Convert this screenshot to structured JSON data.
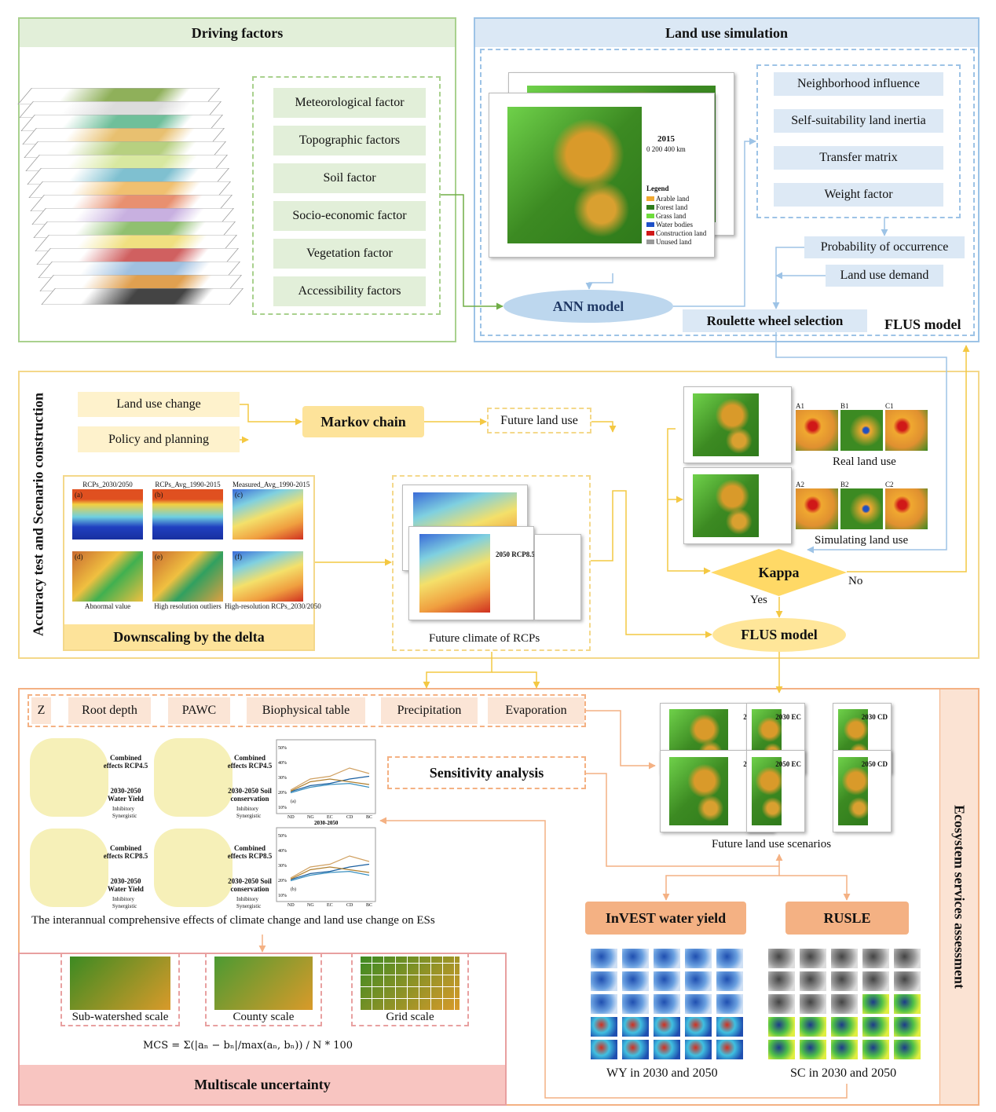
{
  "driving": {
    "title": "Driving factors",
    "factors": [
      "Meteorological factor",
      "Topographic factors",
      "Soil factor",
      "Socio-economic factor",
      "Vegetation factor",
      "Accessibility factors"
    ]
  },
  "simulation": {
    "title": "Land use simulation",
    "map_year": "2015",
    "map_legend_title": "Legend",
    "map_legend": [
      "Arable land",
      "Forest land",
      "Grass land",
      "Water bodies",
      "Construction land",
      "Unused land"
    ],
    "map_scale": "0   200   400 km",
    "influences": [
      "Neighborhood influence",
      "Self-suitability land inertia",
      "Transfer matrix",
      "Weight factor"
    ],
    "probability": "Probability of occurrence",
    "demand": "Land use demand",
    "ann": "ANN model",
    "roulette": "Roulette wheel selection",
    "flus": "FLUS model"
  },
  "accuracy": {
    "title": "Accuracy test and Scenario construction",
    "land_use_change": "Land use change",
    "policy": "Policy and planning",
    "markov": "Markov chain",
    "future_land_use": "Future land use",
    "downscaling_panels": [
      "RCPs_2030/2050",
      "RCPs_Avg_1990-2015",
      "Measured_Avg_1990-2015"
    ],
    "downscaling_captions": [
      "Abnormal value",
      "High resolution outliers",
      "High-resolution RCPs_2030/2050"
    ],
    "downscaling_letters": [
      "(a)",
      "(b)",
      "(c)",
      "(d)",
      "(e)",
      "(f)"
    ],
    "downscaling_title": "Downscaling by the delta",
    "future_climate": "Future climate of RCPs",
    "climate_map_title": "2050 RCP8.5",
    "real": "Real land use",
    "simulating": "Simulating land use",
    "zoom_labels_real": [
      "A1",
      "B1",
      "C1"
    ],
    "zoom_labels_sim": [
      "A2",
      "B2",
      "C2"
    ],
    "kappa": "Kappa",
    "yes": "Yes",
    "no": "No",
    "flus": "FLUS model"
  },
  "ecosystem": {
    "title": "Ecosystem services assessment",
    "inputs": [
      "Z",
      "Root depth",
      "PAWC",
      "Biophysical table",
      "Precipitation",
      "Evaporation"
    ],
    "sensitivity": "Sensitivity analysis",
    "effect_maps": [
      {
        "title": "Combined effects RCP4.5",
        "sub": "2030-2050 Water Yield"
      },
      {
        "title": "Combined effects RCP4.5",
        "sub": "2030-2050 Soil conservation"
      },
      {
        "title": "Combined effects RCP8.5",
        "sub": "2030-2050 Water Yield"
      },
      {
        "title": "Combined effects RCP8.5",
        "sub": "2030-2050 Soil conservation"
      }
    ],
    "effect_legend": [
      "Inhibitory",
      "Synergistic"
    ],
    "chart_mid_label": "2030-2050",
    "chart_labels": [
      "(a)",
      "(b)"
    ],
    "chart_categories": [
      "ND",
      "NG",
      "EC",
      "CD",
      "BC"
    ],
    "chart_y_ticks": [
      "10%",
      "20%",
      "30%",
      "40%",
      "50%"
    ],
    "caption": "The interannual comprehensive effects of climate change and land use change on ESs",
    "scenarios_caption": "Future land use scenarios",
    "scenario_titles": [
      "2030 NG",
      "2030 EC",
      "2030 CD",
      "2050 NG",
      "2050 EC",
      "2050 CD"
    ],
    "invest": "InVEST water yield",
    "rusle": "RUSLE",
    "wy": "WY in 2030 and 2050",
    "sc": "SC in 2030 and 2050",
    "scales": [
      "Sub-watershed scale",
      "County scale",
      "Grid scale"
    ],
    "formula": "MCS = Σ(|aₙ − bₙ|/max(aₙ, bₙ)) / N * 100",
    "multiscale": "Multiscale uncertainty"
  },
  "colors": {
    "green_header": "#e2efd9",
    "blue_header": "#dbe8f5",
    "yellow": "#fde7a4",
    "orange": "#f4b183",
    "pink": "#f8c5c1"
  }
}
